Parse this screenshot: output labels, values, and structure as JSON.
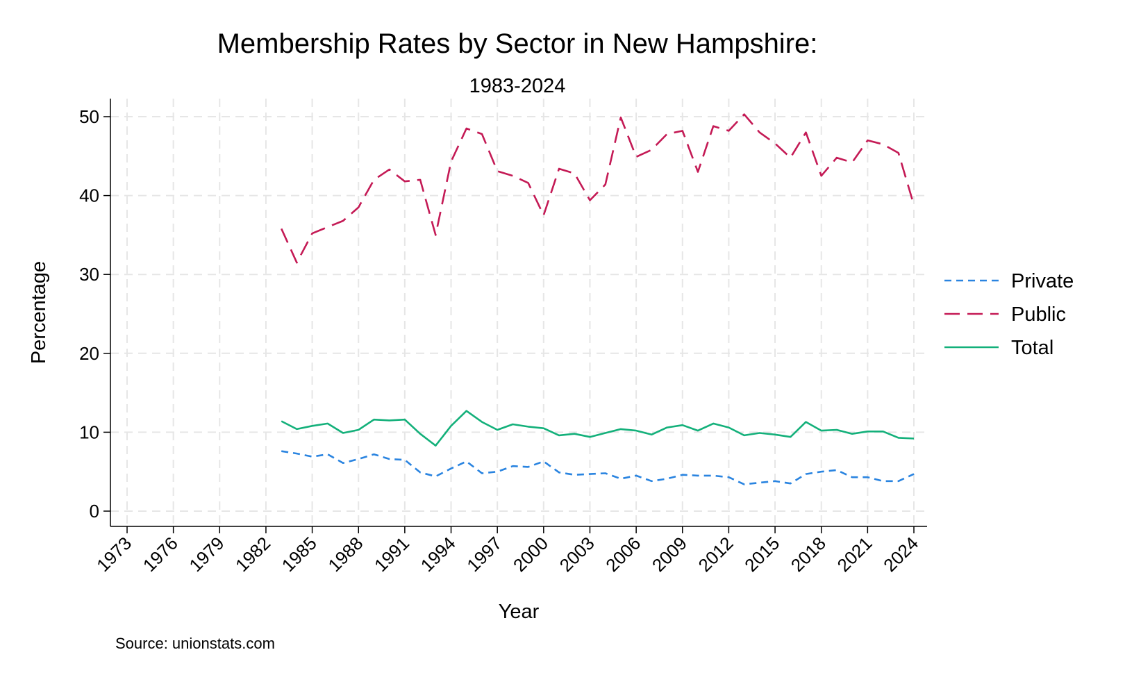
{
  "chart_data": {
    "type": "line",
    "title": "Membership Rates by Sector in New Hampshire:",
    "subtitle": "1983-2024",
    "xlabel": "Year",
    "ylabel": "Percentage",
    "note": "Source: unionstats.com",
    "xlim": [
      1973,
      2024
    ],
    "ylim": [
      0,
      50
    ],
    "x_ticks": [
      "1973",
      "1976",
      "1979",
      "1982",
      "1985",
      "1988",
      "1991",
      "1994",
      "1997",
      "2000",
      "2003",
      "2006",
      "2009",
      "2012",
      "2015",
      "2018",
      "2021",
      "2024"
    ],
    "y_ticks": [
      "0",
      "10",
      "20",
      "30",
      "40",
      "50"
    ],
    "grid": true,
    "legend_position": "right",
    "x": [
      1983,
      1984,
      1985,
      1986,
      1987,
      1988,
      1989,
      1990,
      1991,
      1992,
      1993,
      1994,
      1995,
      1996,
      1997,
      1998,
      1999,
      2000,
      2001,
      2002,
      2003,
      2004,
      2005,
      2006,
      2007,
      2008,
      2009,
      2010,
      2011,
      2012,
      2013,
      2014,
      2015,
      2016,
      2017,
      2018,
      2019,
      2020,
      2021,
      2022,
      2023,
      2024
    ],
    "series": [
      {
        "name": "Private",
        "color": "#2a84e0",
        "dash": "short",
        "values": [
          7.6,
          7.3,
          6.9,
          7.2,
          6.1,
          6.6,
          7.2,
          6.6,
          6.5,
          4.9,
          4.4,
          5.4,
          6.3,
          4.8,
          5.0,
          5.7,
          5.6,
          6.3,
          4.9,
          4.6,
          4.7,
          4.8,
          4.1,
          4.5,
          3.8,
          4.1,
          4.6,
          4.5,
          4.5,
          4.3,
          3.4,
          3.6,
          3.8,
          3.5,
          4.7,
          5.0,
          5.2,
          4.3,
          4.3,
          3.8,
          3.8,
          4.7
        ]
      },
      {
        "name": "Public",
        "color": "#c41a55",
        "dash": "long",
        "values": [
          35.8,
          31.5,
          35.2,
          36.0,
          36.8,
          38.5,
          42.0,
          43.3,
          41.8,
          42.0,
          35.0,
          44.3,
          48.5,
          47.8,
          43.1,
          42.5,
          41.6,
          37.5,
          43.4,
          42.8,
          39.4,
          41.4,
          49.9,
          44.9,
          45.8,
          47.8,
          48.2,
          43.0,
          48.8,
          48.2,
          50.3,
          48.0,
          46.6,
          44.8,
          48.0,
          42.5,
          44.8,
          44.2,
          47.0,
          46.5,
          45.4,
          38.8
        ]
      },
      {
        "name": "Total",
        "color": "#13b07a",
        "dash": "solid",
        "values": [
          11.4,
          10.4,
          10.8,
          11.1,
          9.9,
          10.3,
          11.6,
          11.5,
          11.6,
          9.8,
          8.3,
          10.8,
          12.7,
          11.3,
          10.3,
          11.0,
          10.7,
          10.5,
          9.6,
          9.8,
          9.4,
          9.9,
          10.4,
          10.2,
          9.7,
          10.6,
          10.9,
          10.2,
          11.1,
          10.6,
          9.6,
          9.9,
          9.7,
          9.4,
          11.3,
          10.2,
          10.3,
          9.8,
          10.1,
          10.1,
          9.3,
          9.2
        ]
      }
    ]
  }
}
